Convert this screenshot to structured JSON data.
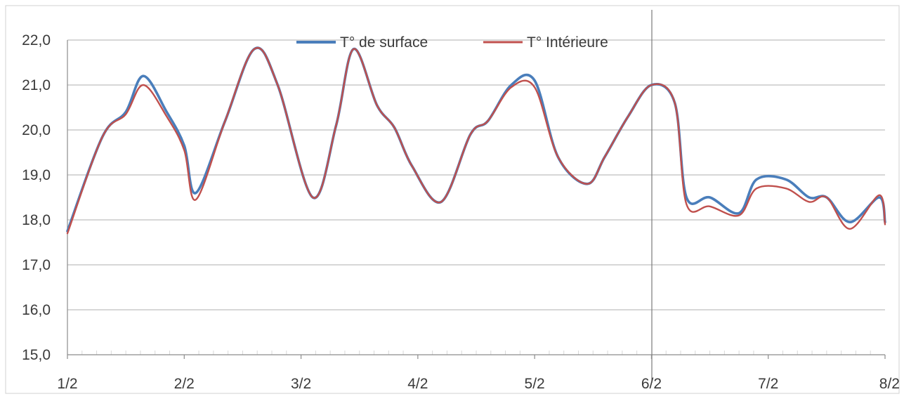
{
  "chart_data": {
    "type": "line",
    "title": "",
    "xlabel": "",
    "ylabel": "",
    "ylim": [
      15,
      22
    ],
    "xlim": [
      0,
      7
    ],
    "x_tick_labels": [
      "1/2",
      "2/2",
      "3/2",
      "4/2",
      "5/2",
      "6/2",
      "7/2",
      "8/2"
    ],
    "y_tick_labels": [
      "15,0",
      "16,0",
      "17,0",
      "18,0",
      "19,0",
      "20,0",
      "21,0",
      "22,0"
    ],
    "grid": "horizontal",
    "legend_position": "top-center",
    "series": [
      {
        "name": "T° de surface",
        "color": "#4a7ebb",
        "x": [
          0,
          0.3,
          0.5,
          0.65,
          0.85,
          1.0,
          1.1,
          1.35,
          1.6,
          1.8,
          2.1,
          2.3,
          2.45,
          2.65,
          2.8,
          2.95,
          3.2,
          3.45,
          3.6,
          3.8,
          4.0,
          4.2,
          4.45,
          4.6,
          4.8,
          5.0,
          5.2,
          5.3,
          5.5,
          5.75,
          5.9,
          6.15,
          6.35,
          6.5,
          6.7,
          6.95,
          7.0
        ],
        "values": [
          17.75,
          19.85,
          20.4,
          21.2,
          20.4,
          19.65,
          18.6,
          20.2,
          21.8,
          21.0,
          18.5,
          20.1,
          21.8,
          20.55,
          20.05,
          19.2,
          18.4,
          19.9,
          20.2,
          21.0,
          21.1,
          19.4,
          18.8,
          19.4,
          20.3,
          21.0,
          20.6,
          18.5,
          18.5,
          18.15,
          18.9,
          18.9,
          18.5,
          18.5,
          17.95,
          18.5,
          17.95
        ]
      },
      {
        "name": "T° Intérieure",
        "color": "#c0504d",
        "x": [
          0,
          0.3,
          0.5,
          0.65,
          0.85,
          1.0,
          1.1,
          1.35,
          1.6,
          1.8,
          2.1,
          2.3,
          2.45,
          2.65,
          2.8,
          2.95,
          3.2,
          3.45,
          3.6,
          3.8,
          4.0,
          4.2,
          4.45,
          4.6,
          4.8,
          5.0,
          5.2,
          5.3,
          5.5,
          5.75,
          5.9,
          6.15,
          6.35,
          6.5,
          6.7,
          6.95,
          7.0
        ],
        "values": [
          17.7,
          19.85,
          20.35,
          21.0,
          20.3,
          19.55,
          18.45,
          20.2,
          21.8,
          21.0,
          18.5,
          20.1,
          21.8,
          20.55,
          20.05,
          19.2,
          18.4,
          19.9,
          20.2,
          20.95,
          20.95,
          19.4,
          18.8,
          19.4,
          20.3,
          21.0,
          20.6,
          18.35,
          18.3,
          18.1,
          18.7,
          18.7,
          18.4,
          18.5,
          17.8,
          18.55,
          17.9
        ]
      }
    ]
  }
}
